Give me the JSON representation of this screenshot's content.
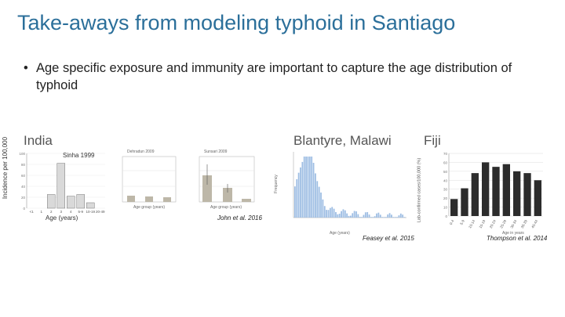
{
  "slide": {
    "title": "Take-aways from modeling typhoid in Santiago",
    "bullet_symbol": "•",
    "bullet_text": "Age specific exposure and immunity are important to capture the age distribution of typhoid"
  },
  "panels": {
    "india": {
      "region": "India",
      "ylabel": "Incidence per 100,000",
      "inset_label": "Sinha 1999",
      "xlabel": "Age (years)"
    },
    "blantyre": {
      "region": "Blantyre, Malawi",
      "citation_mid": "John et al. 2016",
      "citation_right": "Feasey et al. 2015",
      "left_subtitle": "Dehradun 2009",
      "right_subtitle": "Sunsari 2009",
      "left_xlabel": "Age group (years)",
      "right_xlabel": "Age group (years)",
      "hist_ylabel": "Frequency",
      "hist_xlabel": "Age (years)"
    },
    "fiji": {
      "region": "Fiji",
      "ylabel": "Lab-confirmed cases/100,000 (%)",
      "xlabel": "Age in years",
      "citation": "Thompson et al. 2014"
    }
  },
  "chart_data": [
    {
      "type": "bar",
      "id": "india",
      "categories": [
        "<1",
        "1",
        "2",
        "3",
        "4",
        "5-9",
        "10-19",
        "20-49"
      ],
      "values": [
        0,
        0,
        25,
        82,
        22,
        25,
        10,
        0
      ],
      "ylim": [
        0,
        100
      ],
      "yticks": [
        0,
        20,
        40,
        60,
        80,
        100
      ]
    },
    {
      "type": "bar",
      "id": "fiji",
      "categories": [
        "0-4",
        "5-9",
        "10-14",
        "15-19",
        "20-24",
        "25-29",
        "30-34",
        "35-39",
        "40-44"
      ],
      "values": [
        19,
        31,
        48,
        60,
        55,
        58,
        50,
        48,
        40
      ],
      "ylim": [
        0,
        70
      ],
      "yticks": [
        0,
        10,
        20,
        30,
        40,
        50,
        60,
        70
      ]
    }
  ]
}
